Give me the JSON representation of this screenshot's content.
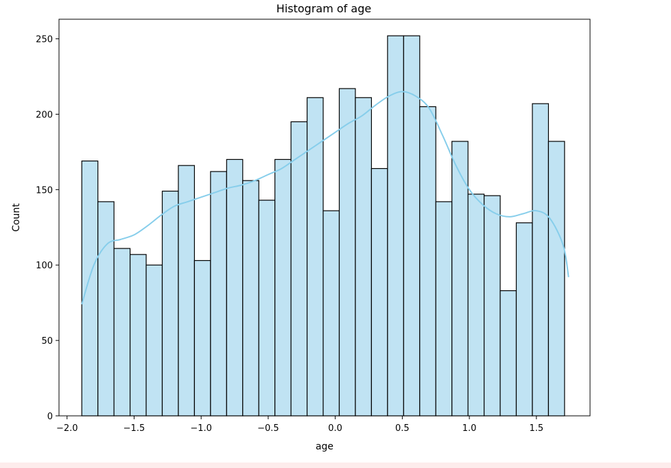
{
  "chart_data": {
    "type": "bar",
    "title": "Histogram of age",
    "xlabel": "age",
    "ylabel": "Count",
    "xlim": [
      -2.06,
      1.9
    ],
    "ylim": [
      0,
      263
    ],
    "bin_start": -1.89,
    "bin_width": 0.12,
    "counts": [
      169,
      142,
      111,
      107,
      100,
      149,
      166,
      103,
      162,
      170,
      156,
      143,
      170,
      195,
      211,
      136,
      217,
      211,
      164,
      252,
      252,
      205,
      142,
      182,
      147,
      146,
      83,
      128,
      207,
      182
    ],
    "x_ticks": [
      -2.0,
      -1.5,
      -1.0,
      -0.5,
      0.0,
      0.5,
      1.0,
      1.5
    ],
    "x_tick_labels": [
      "−2.0",
      "−1.5",
      "−1.0",
      "−0.5",
      "0.0",
      "0.5",
      "1.0",
      "1.5"
    ],
    "y_ticks": [
      0,
      50,
      100,
      150,
      200,
      250
    ],
    "y_tick_labels": [
      "0",
      "50",
      "100",
      "150",
      "200",
      "250"
    ],
    "kde": {
      "x": [
        -1.89,
        -1.8,
        -1.7,
        -1.6,
        -1.5,
        -1.4,
        -1.3,
        -1.2,
        -1.1,
        -1.0,
        -0.9,
        -0.8,
        -0.7,
        -0.6,
        -0.5,
        -0.4,
        -0.3,
        -0.2,
        -0.1,
        0.0,
        0.1,
        0.2,
        0.3,
        0.4,
        0.5,
        0.6,
        0.7,
        0.8,
        0.9,
        1.0,
        1.1,
        1.2,
        1.3,
        1.4,
        1.5,
        1.6,
        1.7,
        1.74
      ],
      "y": [
        74,
        100,
        114,
        117,
        120,
        126,
        133,
        139,
        142,
        145,
        148,
        151,
        153,
        156,
        160,
        164,
        170,
        176,
        182,
        188,
        194,
        199,
        206,
        212,
        215,
        212,
        204,
        186,
        166,
        150,
        140,
        134,
        132,
        134,
        136,
        131,
        113,
        92
      ]
    },
    "bar_fill": "#c0e3f3",
    "bar_edge": "#000000",
    "kde_color": "#87ceeb",
    "grid": false
  }
}
